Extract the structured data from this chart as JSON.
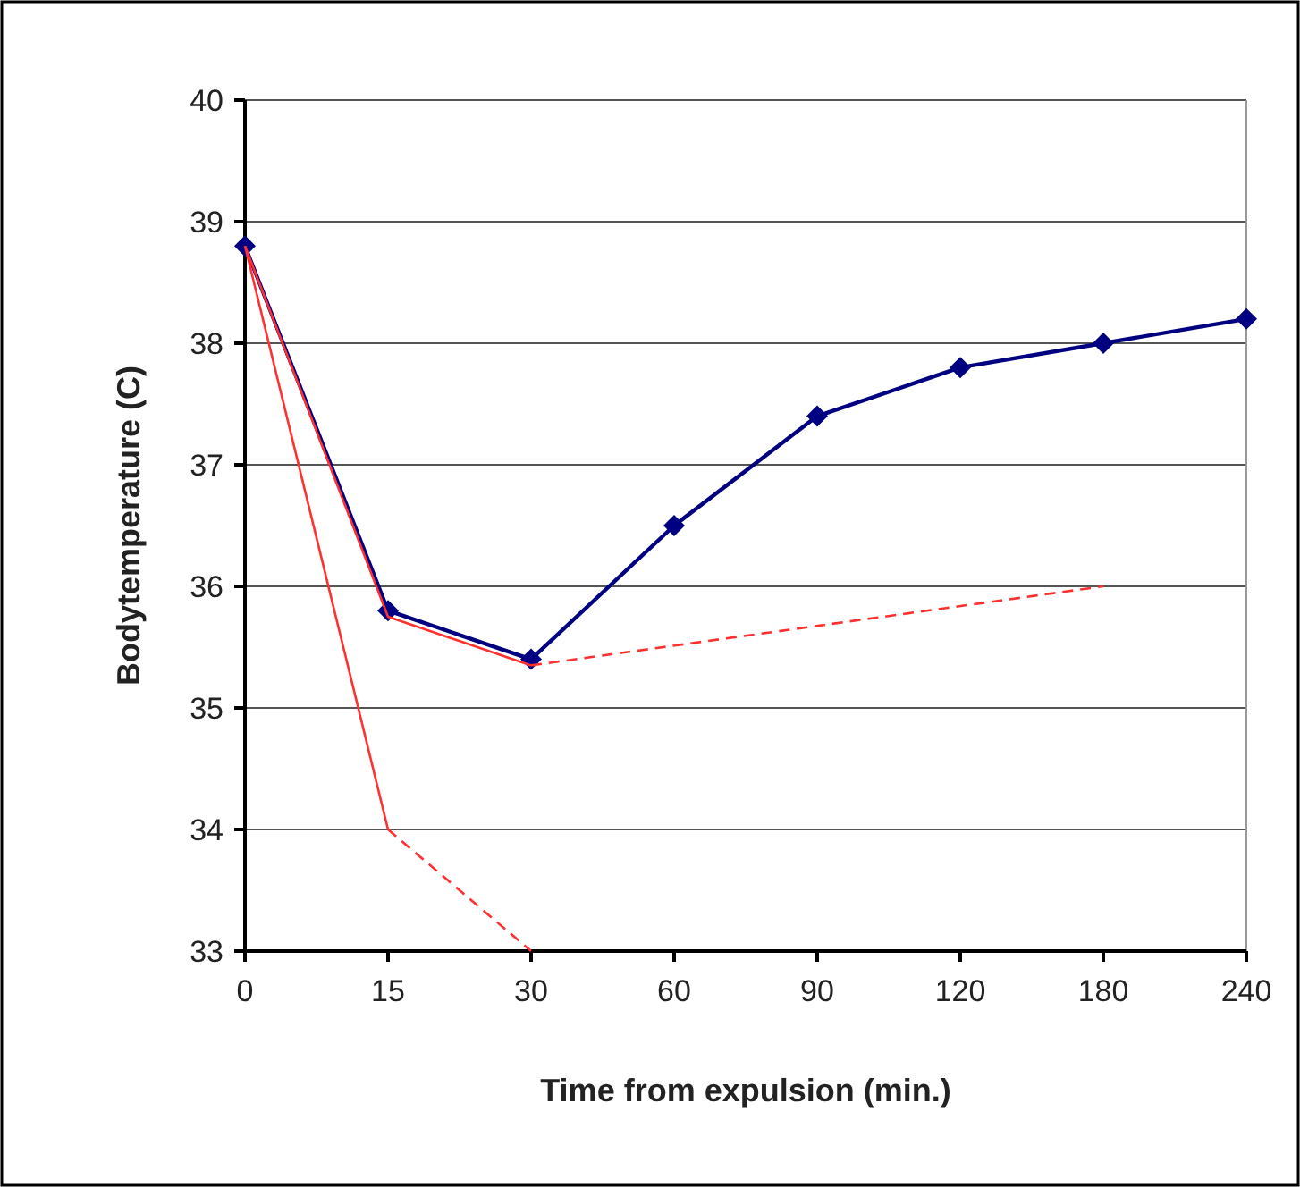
{
  "chart_data": {
    "type": "line",
    "xlabel": "Time from expulsion (min.)",
    "ylabel": "Bodytemperature (C)",
    "categories": [
      "0",
      "15",
      "30",
      "60",
      "90",
      "120",
      "180",
      "240"
    ],
    "ylim": [
      33,
      40
    ],
    "yticks": [
      33,
      34,
      35,
      36,
      37,
      38,
      39,
      40
    ],
    "grid": "y",
    "series": [
      {
        "color": "#000080",
        "marker": "diamond",
        "line_style": "solid",
        "values": [
          38.8,
          35.8,
          35.4,
          36.5,
          37.4,
          37.8,
          38.0,
          38.2
        ]
      },
      {
        "color": "#ff3030",
        "marker": "none",
        "line_style": "solid",
        "x": [
          "0",
          "15",
          "30"
        ],
        "values": [
          38.8,
          35.75,
          35.35
        ]
      },
      {
        "color": "#ff3030",
        "marker": "none",
        "line_style": "dashed",
        "x": [
          "30",
          "180"
        ],
        "values": [
          35.35,
          36.0
        ]
      },
      {
        "color": "#ff3030",
        "marker": "none",
        "line_style": "solid",
        "x": [
          "0",
          "15"
        ],
        "values": [
          38.8,
          34.0
        ]
      },
      {
        "color": "#ff3030",
        "marker": "none",
        "line_style": "dashed",
        "x": [
          "15",
          "30"
        ],
        "values": [
          34.0,
          33.0
        ]
      }
    ]
  }
}
